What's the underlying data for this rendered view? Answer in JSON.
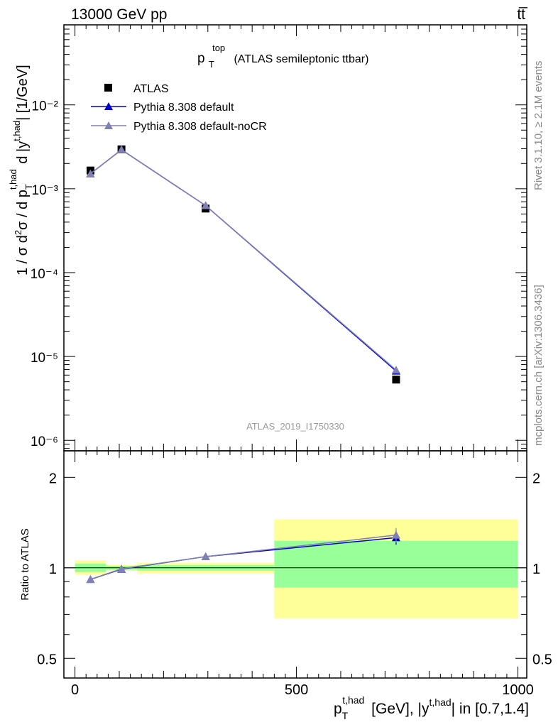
{
  "header": {
    "left": "13000 GeV pp",
    "right": "tt̅"
  },
  "panel_title": {
    "base": "p",
    "sup": "top",
    "sub": "T",
    "rest": "(ATLAS semileptonic ttbar)"
  },
  "watermark": "ATLAS_2019_I1750330",
  "side_text": {
    "rivet": "Rivet 3.1.10, ≥ 2.1M events",
    "mcplots": "mcplots.cern.ch [arXiv:1306.3436]"
  },
  "axes": {
    "main_ylabel": "1 / σ d²σ / d p_T^{t,had} d |y^{t,had}| [1/GeV]",
    "ratio_ylabel": "Ratio to ATLAS",
    "xlabel": "p_T^{t,had} [GeV], |y^{t,had}| in [0.7,1.4]",
    "x_ticks": [
      "0",
      "500",
      "1000"
    ],
    "main_y_ticks": [
      "10⁻⁶",
      "10⁻⁵",
      "10⁻⁴",
      "10⁻³",
      "10⁻²"
    ],
    "ratio_y_ticks": [
      "0.5",
      "1",
      "2"
    ]
  },
  "chart_data": {
    "type": "scatter",
    "x_range": [
      -25,
      1020
    ],
    "main": {
      "yscale": "log",
      "ylim": [
        7.5e-07,
        0.09
      ],
      "series": [
        {
          "name": "ATLAS",
          "marker": "square",
          "color": "#000000",
          "x": [
            35,
            105,
            295,
            725
          ],
          "y": [
            0.00165,
            0.00295,
            0.00058,
            5.3e-06
          ]
        },
        {
          "name": "Pythia 8.308 default",
          "marker": "triangle",
          "color": "#0000cc",
          "x": [
            35,
            105,
            295,
            725
          ],
          "y": [
            0.00151,
            0.00292,
            0.00063,
            6.7e-06
          ]
        },
        {
          "name": "Pythia 8.308 default-noCR",
          "marker": "triangle",
          "color": "#8080b3",
          "x": [
            35,
            105,
            295,
            725
          ],
          "y": [
            0.00151,
            0.00293,
            0.00063,
            6.9e-06
          ]
        }
      ]
    },
    "ratio": {
      "yscale": "log",
      "ylim": [
        0.43,
        2.45
      ],
      "bands": [
        {
          "x": [
            0,
            70
          ],
          "inner": [
            0.968,
            1.032
          ],
          "outer": [
            0.95,
            1.06
          ]
        },
        {
          "x": [
            70,
            140
          ],
          "inner": [
            0.985,
            1.015
          ],
          "outer": [
            0.978,
            1.022
          ]
        },
        {
          "x": [
            140,
            450
          ],
          "inner": [
            0.98,
            1.02
          ],
          "outer": [
            0.96,
            1.04
          ]
        },
        {
          "x": [
            450,
            1000
          ],
          "inner": [
            0.86,
            1.23
          ],
          "outer": [
            0.68,
            1.45
          ]
        }
      ],
      "series": [
        {
          "name": "Pythia 8.308 default",
          "color": "#0000cc",
          "x": [
            35,
            105,
            295,
            725
          ],
          "y": [
            0.915,
            0.99,
            1.09,
            1.26
          ]
        },
        {
          "name": "Pythia 8.308 default-noCR",
          "color": "#8080b3",
          "x": [
            35,
            105,
            295,
            725
          ],
          "y": [
            0.915,
            0.993,
            1.09,
            1.285
          ]
        }
      ]
    }
  }
}
